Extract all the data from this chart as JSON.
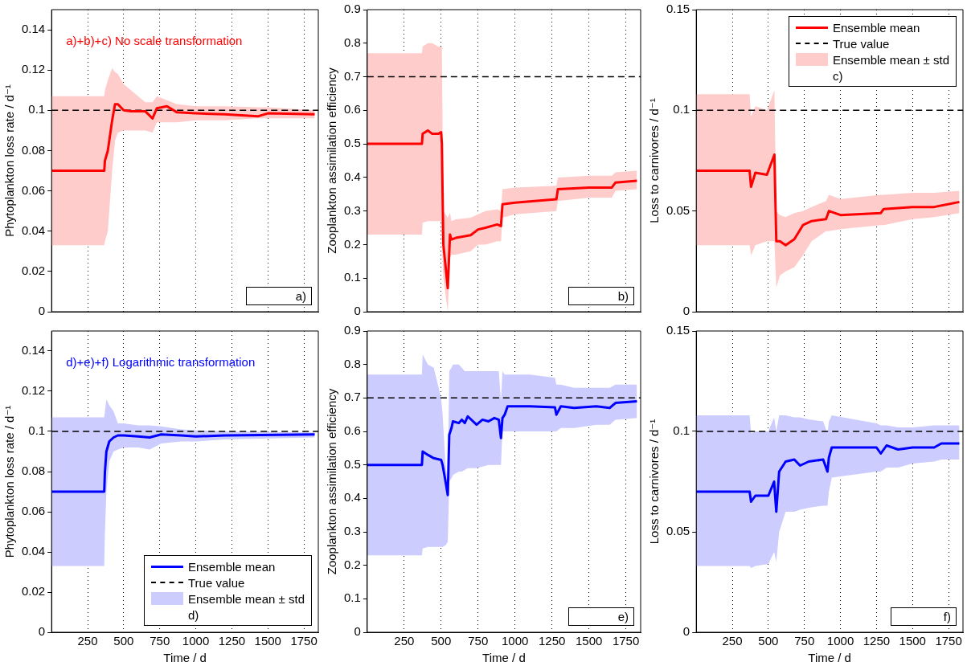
{
  "chart_data": [
    {
      "type": "line",
      "title": "a)+b)+c) No scale transformation",
      "ylabel": "Phytoplankton loss rate / d⁻¹",
      "xlim": [
        0,
        1850
      ],
      "xticks": [
        250,
        500,
        750,
        1000,
        1250,
        1500,
        1750
      ],
      "ylim": [
        0,
        0.15
      ],
      "yticks": [
        0,
        0.02,
        0.04,
        0.06,
        0.08,
        0.1,
        0.12,
        0.14
      ],
      "grid": "x",
      "tick_labels": "y",
      "annotations": [
        "a)"
      ],
      "ref_lines": [
        {
          "axis": "y",
          "value": 0.1,
          "color": "#000000",
          "line_style": "dashed"
        }
      ],
      "series": [
        {
          "color": "#ff0000",
          "x": [
            0,
            365,
            370,
            390,
            420,
            440,
            460,
            500,
            550,
            650,
            700,
            730,
            800,
            870,
            1000,
            1200,
            1430,
            1500,
            1825
          ],
          "values": [
            0.07,
            0.07,
            0.075,
            0.08,
            0.095,
            0.103,
            0.103,
            0.1,
            0.0995,
            0.0995,
            0.096,
            0.101,
            0.102,
            0.099,
            0.0985,
            0.098,
            0.097,
            0.0985,
            0.098
          ],
          "upper": [
            0.107,
            0.107,
            0.11,
            0.115,
            0.121,
            0.119,
            0.118,
            0.113,
            0.11,
            0.104,
            0.104,
            0.107,
            0.105,
            0.103,
            0.102,
            0.102,
            0.1015,
            0.1015,
            0.1
          ],
          "lower": [
            0.033,
            0.033,
            0.035,
            0.04,
            0.07,
            0.085,
            0.089,
            0.09,
            0.09,
            0.09,
            0.089,
            0.094,
            0.094,
            0.094,
            0.095,
            0.095,
            0.096,
            0.096,
            0.096
          ]
        }
      ]
    },
    {
      "type": "line",
      "ylabel": "Zooplankton assimilation efficiency",
      "xlim": [
        0,
        1850
      ],
      "xticks": [
        250,
        500,
        750,
        1000,
        1250,
        1500,
        1750
      ],
      "ylim": [
        0,
        0.9
      ],
      "yticks": [
        0,
        0.1,
        0.2,
        0.3,
        0.4,
        0.5,
        0.6,
        0.7,
        0.8,
        0.9
      ],
      "grid": "x",
      "tick_labels": "y",
      "annotations": [
        "b)"
      ],
      "ref_lines": [
        {
          "axis": "y",
          "value": 0.7,
          "color": "#000000",
          "line_style": "dashed"
        }
      ],
      "series": [
        {
          "color": "#ff0000",
          "x": [
            0,
            370,
            375,
            410,
            440,
            480,
            500,
            505,
            515,
            545,
            560,
            570,
            600,
            700,
            750,
            800,
            880,
            905,
            915,
            1000,
            1280,
            1290,
            1500,
            1655,
            1680,
            1825
          ],
          "values": [
            0.5,
            0.5,
            0.53,
            0.54,
            0.53,
            0.53,
            0.535,
            0.5,
            0.2,
            0.07,
            0.23,
            0.215,
            0.22,
            0.228,
            0.245,
            0.25,
            0.26,
            0.255,
            0.32,
            0.325,
            0.335,
            0.365,
            0.37,
            0.37,
            0.385,
            0.39
          ],
          "upper": [
            0.77,
            0.77,
            0.79,
            0.8,
            0.8,
            0.79,
            0.79,
            0.79,
            0.3,
            0.28,
            0.295,
            0.27,
            0.275,
            0.28,
            0.29,
            0.3,
            0.305,
            0.3,
            0.365,
            0.37,
            0.375,
            0.4,
            0.405,
            0.405,
            0.415,
            0.42
          ],
          "lower": [
            0.23,
            0.23,
            0.265,
            0.27,
            0.27,
            0.27,
            0.27,
            0.2,
            0.1,
            0,
            0.16,
            0.17,
            0.17,
            0.18,
            0.2,
            0.2,
            0.21,
            0.21,
            0.28,
            0.29,
            0.3,
            0.33,
            0.34,
            0.34,
            0.36,
            0.365
          ]
        }
      ]
    },
    {
      "type": "line",
      "ylabel": "Loss to carnivores / d⁻¹",
      "xlim": [
        0,
        1850
      ],
      "xticks": [
        250,
        500,
        750,
        1000,
        1250,
        1500,
        1750
      ],
      "ylim": [
        0,
        0.15
      ],
      "yticks": [
        0,
        0.05,
        0.1,
        0.15
      ],
      "grid": "x",
      "tick_labels": "y",
      "legend": "top right",
      "annotations": [
        "Ensemble mean ± std",
        "c)"
      ],
      "ref_lines": [
        {
          "axis": "y",
          "value": 0.1,
          "label": "True value",
          "color": "#000000",
          "line_style": "dashed"
        }
      ],
      "series": [
        {
          "name": "Ensemble mean",
          "color": "#ff0000",
          "x": [
            0,
            370,
            380,
            410,
            490,
            542,
            555,
            580,
            620,
            680,
            740,
            800,
            900,
            920,
            1000,
            1280,
            1300,
            1500,
            1650,
            1825
          ],
          "values": [
            0.07,
            0.07,
            0.062,
            0.069,
            0.068,
            0.078,
            0.035,
            0.035,
            0.033,
            0.036,
            0.043,
            0.045,
            0.046,
            0.05,
            0.048,
            0.049,
            0.051,
            0.052,
            0.052,
            0.0545
          ],
          "upper": [
            0.108,
            0.108,
            0.097,
            0.102,
            0.1,
            0.11,
            0.05,
            0.048,
            0.047,
            0.049,
            0.05,
            0.052,
            0.055,
            0.058,
            0.056,
            0.058,
            0.058,
            0.059,
            0.059,
            0.06
          ],
          "lower": [
            0.033,
            0.033,
            0.028,
            0.033,
            0.035,
            0.035,
            0.012,
            0.018,
            0.02,
            0.022,
            0.028,
            0.035,
            0.04,
            0.04,
            0.041,
            0.043,
            0.043,
            0.046,
            0.047,
            0.049
          ]
        }
      ]
    },
    {
      "type": "line",
      "title": "d)+e)+f) Logarithmic transformation",
      "xlabel": "Time / d",
      "ylabel": "Phytoplankton loss rate / d⁻¹",
      "xlim": [
        0,
        1850
      ],
      "xticks": [
        250,
        500,
        750,
        1000,
        1250,
        1500,
        1750
      ],
      "ylim": [
        0,
        0.15
      ],
      "yticks": [
        0,
        0.02,
        0.04,
        0.06,
        0.08,
        0.1,
        0.12,
        0.14
      ],
      "grid": "x",
      "legend": "bottom right",
      "annotations": [
        "Ensemble mean ± std",
        "d)"
      ],
      "ref_lines": [
        {
          "axis": "y",
          "value": 0.1,
          "label": "True value",
          "color": "#000000",
          "line_style": "dashed"
        }
      ],
      "series": [
        {
          "name": "Ensemble mean",
          "color": "#0000ff",
          "x": [
            0,
            365,
            370,
            380,
            400,
            430,
            460,
            500,
            600,
            680,
            760,
            900,
            1000,
            1200,
            1825
          ],
          "values": [
            0.07,
            0.07,
            0.08,
            0.09,
            0.095,
            0.097,
            0.098,
            0.098,
            0.0975,
            0.097,
            0.0985,
            0.098,
            0.0975,
            0.098,
            0.0985
          ],
          "upper": [
            0.107,
            0.107,
            0.11,
            0.116,
            0.113,
            0.11,
            0.104,
            0.104,
            0.103,
            0.103,
            0.1025,
            0.101,
            0.1005,
            0.1,
            0.0995
          ],
          "lower": [
            0.033,
            0.033,
            0.05,
            0.07,
            0.085,
            0.09,
            0.091,
            0.092,
            0.092,
            0.091,
            0.094,
            0.095,
            0.095,
            0.096,
            0.097
          ]
        }
      ]
    },
    {
      "type": "line",
      "xlabel": "Time / d",
      "ylabel": "Zooplankton assimilation efficiency",
      "xlim": [
        0,
        1850
      ],
      "xticks": [
        250,
        500,
        750,
        1000,
        1250,
        1500,
        1750
      ],
      "ylim": [
        0,
        0.9
      ],
      "yticks": [
        0,
        0.1,
        0.2,
        0.3,
        0.4,
        0.5,
        0.6,
        0.7,
        0.8,
        0.9
      ],
      "grid": "x",
      "annotations": [
        "e)"
      ],
      "ref_lines": [
        {
          "axis": "y",
          "value": 0.7,
          "color": "#000000",
          "line_style": "dashed"
        }
      ],
      "series": [
        {
          "color": "#0000ff",
          "x": [
            0,
            370,
            375,
            410,
            450,
            500,
            510,
            530,
            545,
            555,
            570,
            580,
            620,
            640,
            660,
            680,
            740,
            780,
            820,
            860,
            890,
            905,
            915,
            930,
            950,
            1100,
            1270,
            1280,
            1310,
            1400,
            1550,
            1640,
            1680,
            1825
          ],
          "values": [
            0.5,
            0.5,
            0.54,
            0.53,
            0.52,
            0.515,
            0.5,
            0.45,
            0.41,
            0.59,
            0.61,
            0.63,
            0.625,
            0.635,
            0.625,
            0.645,
            0.62,
            0.635,
            0.63,
            0.64,
            0.635,
            0.58,
            0.64,
            0.65,
            0.675,
            0.675,
            0.672,
            0.65,
            0.675,
            0.67,
            0.675,
            0.67,
            0.685,
            0.69
          ],
          "upper": [
            0.77,
            0.77,
            0.83,
            0.8,
            0.79,
            0.7,
            0.65,
            0.5,
            0.45,
            0.78,
            0.79,
            0.8,
            0.8,
            0.79,
            0.78,
            0.78,
            0.78,
            0.78,
            0.78,
            0.78,
            0.78,
            0.69,
            0.78,
            0.77,
            0.77,
            0.77,
            0.76,
            0.74,
            0.74,
            0.73,
            0.73,
            0.73,
            0.74,
            0.74
          ],
          "lower": [
            0.23,
            0.23,
            0.25,
            0.255,
            0.255,
            0.255,
            0.255,
            0.26,
            0.27,
            0.45,
            0.46,
            0.47,
            0.48,
            0.48,
            0.485,
            0.49,
            0.49,
            0.495,
            0.5,
            0.5,
            0.5,
            0.5,
            0.6,
            0.6,
            0.6,
            0.6,
            0.6,
            0.6,
            0.61,
            0.61,
            0.62,
            0.62,
            0.635,
            0.64
          ]
        }
      ]
    },
    {
      "type": "line",
      "xlabel": "Time / d",
      "ylabel": "Loss to carnivores / d⁻¹",
      "xlim": [
        0,
        1850
      ],
      "xticks": [
        250,
        500,
        750,
        1000,
        1250,
        1500,
        1750
      ],
      "ylim": [
        0,
        0.15
      ],
      "yticks": [
        0,
        0.05,
        0.1,
        0.15
      ],
      "grid": "x",
      "annotations": [
        "f)"
      ],
      "ref_lines": [
        {
          "axis": "y",
          "value": 0.1,
          "color": "#000000",
          "line_style": "dashed"
        }
      ],
      "series": [
        {
          "color": "#0000ff",
          "x": [
            0,
            370,
            380,
            410,
            500,
            540,
            555,
            575,
            620,
            680,
            720,
            780,
            880,
            910,
            920,
            940,
            1250,
            1280,
            1320,
            1400,
            1500,
            1650,
            1700,
            1825
          ],
          "values": [
            0.07,
            0.07,
            0.065,
            0.068,
            0.068,
            0.075,
            0.06,
            0.08,
            0.085,
            0.086,
            0.083,
            0.085,
            0.086,
            0.08,
            0.087,
            0.092,
            0.092,
            0.089,
            0.093,
            0.091,
            0.092,
            0.092,
            0.094,
            0.094
          ],
          "upper": [
            0.108,
            0.108,
            0.099,
            0.1,
            0.1,
            0.107,
            0.1,
            0.108,
            0.108,
            0.107,
            0.107,
            0.106,
            0.105,
            0.099,
            0.105,
            0.108,
            0.104,
            0.103,
            0.103,
            0.102,
            0.102,
            0.103,
            0.103,
            0.103
          ],
          "lower": [
            0.033,
            0.033,
            0.032,
            0.033,
            0.034,
            0.04,
            0.035,
            0.05,
            0.06,
            0.06,
            0.061,
            0.062,
            0.063,
            0.063,
            0.07,
            0.077,
            0.08,
            0.08,
            0.082,
            0.082,
            0.084,
            0.085,
            0.086,
            0.086
          ]
        }
      ]
    }
  ]
}
